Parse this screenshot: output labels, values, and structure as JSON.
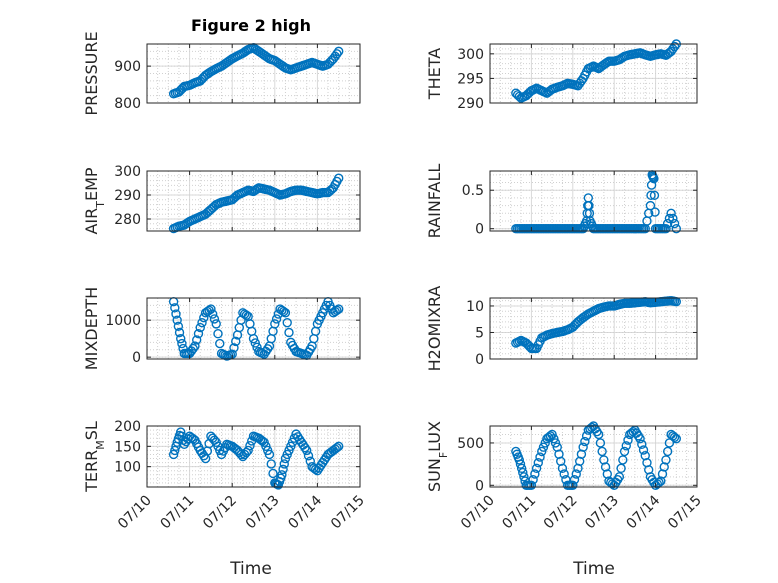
{
  "figure": {
    "title": "Figure 2 high",
    "xlabel": "Time"
  },
  "colors": {
    "marker": "#0072BD",
    "axis": "#262626",
    "grid": "#d9d9d9"
  },
  "chart_data": [
    {
      "type": "scatter",
      "id": "pressure",
      "ylabel": "PRESSURE",
      "xlim": [
        "07/10",
        "07/15"
      ],
      "ylim": [
        800,
        960
      ],
      "yticks": [
        800,
        900
      ],
      "ytick_labels": [
        "800",
        "900"
      ],
      "grid": true,
      "x": [
        "07/10 15:00",
        "07/10 18:00",
        "07/10 21:00",
        "07/11 00:00",
        "07/11 03:00",
        "07/11 06:00",
        "07/11 09:00",
        "07/11 12:00",
        "07/11 15:00",
        "07/11 18:00",
        "07/11 21:00",
        "07/12 00:00",
        "07/12 03:00",
        "07/12 06:00",
        "07/12 09:00",
        "07/12 12:00",
        "07/12 15:00",
        "07/12 18:00",
        "07/12 21:00",
        "07/13 00:00",
        "07/13 03:00",
        "07/13 06:00",
        "07/13 09:00",
        "07/13 12:00",
        "07/13 15:00",
        "07/13 18:00",
        "07/13 21:00",
        "07/14 00:00",
        "07/14 03:00",
        "07/14 06:00",
        "07/14 09:00",
        "07/14 12:00"
      ],
      "y": [
        825,
        830,
        845,
        848,
        855,
        860,
        875,
        885,
        893,
        900,
        910,
        920,
        928,
        935,
        945,
        950,
        940,
        930,
        920,
        915,
        905,
        895,
        890,
        895,
        900,
        905,
        910,
        905,
        900,
        905,
        920,
        940
      ]
    },
    {
      "type": "scatter",
      "id": "theta",
      "ylabel": "THETA",
      "xlim": [
        "07/10",
        "07/15"
      ],
      "ylim": [
        290,
        302
      ],
      "yticks": [
        290,
        295,
        300
      ],
      "ytick_labels": [
        "290",
        "295",
        "300"
      ],
      "grid": true,
      "x": [
        "07/10 15:00",
        "07/10 18:00",
        "07/10 21:00",
        "07/11 00:00",
        "07/11 03:00",
        "07/11 06:00",
        "07/11 09:00",
        "07/11 12:00",
        "07/11 15:00",
        "07/11 18:00",
        "07/11 21:00",
        "07/12 00:00",
        "07/12 03:00",
        "07/12 06:00",
        "07/12 09:00",
        "07/12 12:00",
        "07/12 15:00",
        "07/12 18:00",
        "07/12 21:00",
        "07/13 00:00",
        "07/13 03:00",
        "07/13 06:00",
        "07/13 09:00",
        "07/13 12:00",
        "07/13 15:00",
        "07/13 18:00",
        "07/13 21:00",
        "07/14 00:00",
        "07/14 03:00",
        "07/14 06:00",
        "07/14 09:00",
        "07/14 12:00"
      ],
      "y": [
        292,
        291,
        291.5,
        292.5,
        293,
        292.5,
        292,
        292.8,
        293.2,
        293.5,
        294,
        293.8,
        293.5,
        295,
        297,
        297.5,
        297,
        297.8,
        298.5,
        298.5,
        298.8,
        299.5,
        299.8,
        300,
        300.2,
        299.8,
        299.5,
        299.8,
        300,
        299.7,
        300.5,
        302
      ]
    },
    {
      "type": "scatter",
      "id": "airtemp",
      "ylabel": "AIR_TEMP",
      "xlim": [
        "07/10",
        "07/15"
      ],
      "ylim": [
        275,
        300
      ],
      "yticks": [
        280,
        290,
        300
      ],
      "ytick_labels": [
        "280",
        "290",
        "300"
      ],
      "grid": true,
      "x": [
        "07/10 15:00",
        "07/10 18:00",
        "07/10 21:00",
        "07/11 00:00",
        "07/11 03:00",
        "07/11 06:00",
        "07/11 09:00",
        "07/11 12:00",
        "07/11 15:00",
        "07/11 18:00",
        "07/11 21:00",
        "07/12 00:00",
        "07/12 03:00",
        "07/12 06:00",
        "07/12 09:00",
        "07/12 12:00",
        "07/12 15:00",
        "07/12 18:00",
        "07/12 21:00",
        "07/13 00:00",
        "07/13 03:00",
        "07/13 06:00",
        "07/13 09:00",
        "07/13 12:00",
        "07/13 15:00",
        "07/13 18:00",
        "07/13 21:00",
        "07/14 00:00",
        "07/14 03:00",
        "07/14 06:00",
        "07/14 09:00",
        "07/14 12:00"
      ],
      "y": [
        276,
        277,
        277.5,
        279,
        280,
        281,
        282,
        284,
        286,
        287,
        287.5,
        288,
        290,
        291,
        292,
        291.5,
        293,
        292.5,
        292,
        291,
        290,
        290.5,
        291.5,
        292,
        292,
        291.5,
        291,
        290.5,
        291,
        291,
        293,
        297
      ]
    },
    {
      "type": "scatter",
      "id": "rainfall",
      "ylabel": "RAINFALL",
      "xlim": [
        "07/10",
        "07/15"
      ],
      "ylim": [
        -0.03,
        0.75
      ],
      "yticks": [
        0,
        0.5
      ],
      "ytick_labels": [
        "0",
        "0.5"
      ],
      "grid": true,
      "x": [
        "07/10 15:00",
        "07/10 18:00",
        "07/10 21:00",
        "07/11 00:00",
        "07/11 03:00",
        "07/11 06:00",
        "07/11 09:00",
        "07/11 12:00",
        "07/11 15:00",
        "07/11 18:00",
        "07/11 21:00",
        "07/12 00:00",
        "07/12 03:00",
        "07/12 06:00",
        "07/12 08:00",
        "07/12 09:00",
        "07/12 10:00",
        "07/12 12:00",
        "07/12 15:00",
        "07/12 18:00",
        "07/12 21:00",
        "07/13 00:00",
        "07/13 03:00",
        "07/13 06:00",
        "07/13 09:00",
        "07/13 12:00",
        "07/13 15:00",
        "07/13 18:00",
        "07/13 21:00",
        "07/13 22:00",
        "07/13 23:00",
        "07/14 00:00",
        "07/14 03:00",
        "07/14 06:00",
        "07/14 09:00",
        "07/14 12:00"
      ],
      "y": [
        0,
        0,
        0,
        0,
        0,
        0,
        0,
        0,
        0,
        0,
        0,
        0,
        0,
        0,
        0.1,
        0.4,
        0.1,
        0,
        0,
        0,
        0,
        0,
        0,
        0,
        0,
        0,
        0,
        0,
        0.3,
        0.7,
        0.65,
        0,
        0,
        0,
        0.2,
        0
      ]
    },
    {
      "type": "scatter",
      "id": "mixdepth",
      "ylabel": "MIXDEPTH",
      "xlim": [
        "07/10",
        "07/15"
      ],
      "ylim": [
        -50,
        1600
      ],
      "yticks": [
        0,
        1000
      ],
      "ytick_labels": [
        "0",
        "1000"
      ],
      "grid": true,
      "x": [
        "07/10 15:00",
        "07/10 17:00",
        "07/10 19:00",
        "07/10 21:00",
        "07/11 00:00",
        "07/11 03:00",
        "07/11 06:00",
        "07/11 09:00",
        "07/11 12:00",
        "07/11 15:00",
        "07/11 18:00",
        "07/11 21:00",
        "07/12 00:00",
        "07/12 03:00",
        "07/12 06:00",
        "07/12 09:00",
        "07/12 12:00",
        "07/12 15:00",
        "07/12 18:00",
        "07/12 21:00",
        "07/13 00:00",
        "07/13 03:00",
        "07/13 06:00",
        "07/13 09:00",
        "07/13 12:00",
        "07/13 15:00",
        "07/13 18:00",
        "07/13 21:00",
        "07/14 00:00",
        "07/14 03:00",
        "07/14 06:00",
        "07/14 09:00",
        "07/14 12:00"
      ],
      "y": [
        1500,
        1000,
        500,
        100,
        100,
        300,
        800,
        1200,
        1300,
        900,
        100,
        30,
        80,
        600,
        1200,
        1100,
        500,
        150,
        80,
        300,
        900,
        1300,
        1200,
        400,
        150,
        100,
        50,
        300,
        900,
        1200,
        1500,
        1200,
        1300
      ]
    },
    {
      "type": "scatter",
      "id": "h2omixra",
      "ylabel": "H2OMIXRA",
      "xlim": [
        "07/10",
        "07/15"
      ],
      "ylim": [
        0,
        11.5
      ],
      "yticks": [
        0,
        5,
        10
      ],
      "ytick_labels": [
        "0",
        "5",
        "10"
      ],
      "grid": true,
      "x": [
        "07/10 15:00",
        "07/10 18:00",
        "07/10 21:00",
        "07/11 00:00",
        "07/11 03:00",
        "07/11 06:00",
        "07/11 09:00",
        "07/11 12:00",
        "07/11 15:00",
        "07/11 18:00",
        "07/11 21:00",
        "07/12 00:00",
        "07/12 03:00",
        "07/12 06:00",
        "07/12 09:00",
        "07/12 12:00",
        "07/12 15:00",
        "07/12 18:00",
        "07/12 21:00",
        "07/13 00:00",
        "07/13 03:00",
        "07/13 06:00",
        "07/13 09:00",
        "07/13 12:00",
        "07/13 15:00",
        "07/13 18:00",
        "07/13 21:00",
        "07/14 00:00",
        "07/14 03:00",
        "07/14 06:00",
        "07/14 09:00",
        "07/14 12:00"
      ],
      "y": [
        3,
        3.5,
        3,
        2,
        2,
        4,
        4.5,
        4.8,
        5,
        5.2,
        5.5,
        6,
        7,
        7.8,
        8.5,
        9,
        9.5,
        9.8,
        10,
        10,
        10.3,
        10.5,
        10.5,
        10.6,
        10.7,
        10.8,
        10.6,
        10.7,
        10.8,
        10.9,
        11,
        10.8
      ]
    },
    {
      "type": "scatter",
      "id": "terrmsl",
      "ylabel": "TERR_MSL",
      "xlim": [
        "07/10",
        "07/15"
      ],
      "ylim": [
        50,
        200
      ],
      "yticks": [
        100,
        150,
        200
      ],
      "ytick_labels": [
        "100",
        "150",
        "200"
      ],
      "grid": true,
      "x": [
        "07/10 15:00",
        "07/10 17:00",
        "07/10 19:00",
        "07/10 21:00",
        "07/11 00:00",
        "07/11 03:00",
        "07/11 06:00",
        "07/11 09:00",
        "07/11 12:00",
        "07/11 15:00",
        "07/11 18:00",
        "07/11 21:00",
        "07/12 00:00",
        "07/12 03:00",
        "07/12 06:00",
        "07/12 09:00",
        "07/12 12:00",
        "07/12 15:00",
        "07/12 18:00",
        "07/12 21:00",
        "07/13 00:00",
        "07/13 02:00",
        "07/13 04:00",
        "07/13 06:00",
        "07/13 09:00",
        "07/13 12:00",
        "07/13 15:00",
        "07/13 18:00",
        "07/13 21:00",
        "07/14 00:00",
        "07/14 03:00",
        "07/14 06:00",
        "07/14 09:00",
        "07/14 12:00"
      ],
      "y": [
        130,
        160,
        185,
        155,
        175,
        165,
        140,
        120,
        175,
        160,
        130,
        155,
        150,
        140,
        125,
        140,
        175,
        170,
        160,
        130,
        60,
        55,
        80,
        120,
        150,
        180,
        160,
        140,
        100,
        90,
        110,
        130,
        140,
        150
      ]
    },
    {
      "type": "scatter",
      "id": "sunflux",
      "ylabel": "SUN_FLUX",
      "xlim": [
        "07/10",
        "07/15"
      ],
      "ylim": [
        -20,
        700
      ],
      "yticks": [
        0,
        500
      ],
      "ytick_labels": [
        "0",
        "500"
      ],
      "grid": true,
      "x": [
        "07/10 15:00",
        "07/10 17:00",
        "07/10 19:00",
        "07/10 21:00",
        "07/11 00:00",
        "07/11 03:00",
        "07/11 06:00",
        "07/11 09:00",
        "07/11 12:00",
        "07/11 15:00",
        "07/11 18:00",
        "07/11 21:00",
        "07/12 00:00",
        "07/12 03:00",
        "07/12 06:00",
        "07/12 09:00",
        "07/12 12:00",
        "07/12 15:00",
        "07/12 18:00",
        "07/12 21:00",
        "07/13 00:00",
        "07/13 03:00",
        "07/13 06:00",
        "07/13 09:00",
        "07/13 12:00",
        "07/13 15:00",
        "07/13 18:00",
        "07/13 21:00",
        "07/14 00:00",
        "07/14 03:00",
        "07/14 06:00",
        "07/14 09:00",
        "07/14 12:00"
      ],
      "y": [
        400,
        300,
        150,
        0,
        0,
        200,
        400,
        550,
        600,
        450,
        200,
        0,
        0,
        200,
        450,
        650,
        700,
        600,
        300,
        50,
        0,
        100,
        400,
        600,
        650,
        550,
        350,
        100,
        0,
        50,
        300,
        600,
        550
      ]
    }
  ],
  "x_axis": {
    "tick_labels": [
      "07/10",
      "07/11",
      "07/12",
      "07/13",
      "07/14",
      "07/15"
    ]
  }
}
